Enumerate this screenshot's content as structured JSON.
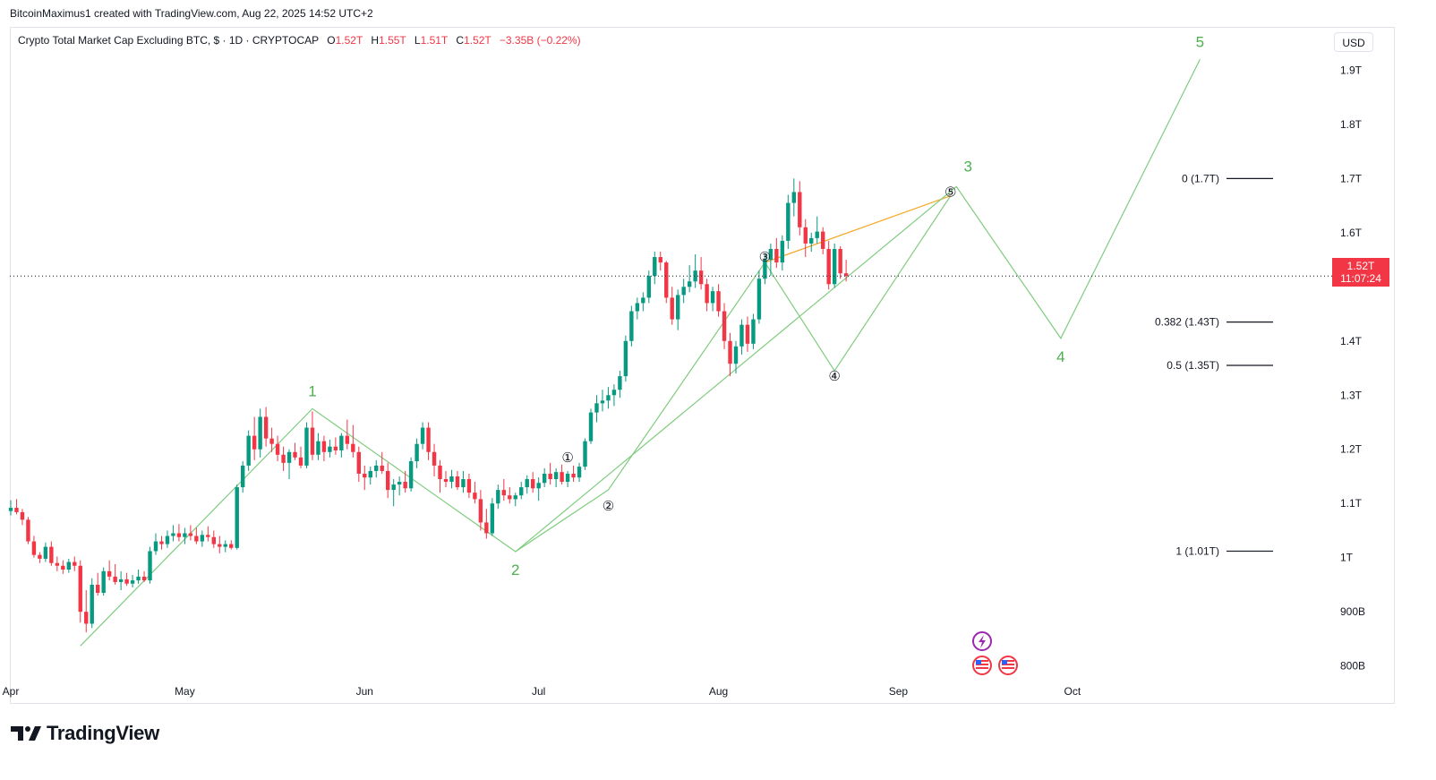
{
  "caption": "BitcoinMaximus1 created with TradingView.com, Aug 22, 2025 14:52 UTC+2",
  "legend": {
    "symbol": "Crypto Total Market Cap Excluding BTC, $ · 1D · CRYPTOCAP",
    "open_label": "O",
    "open": "1.52T",
    "high_label": "H",
    "high": "1.55T",
    "low_label": "L",
    "low": "1.51T",
    "close_label": "C",
    "close": "1.52T",
    "change": "−3.35B (−0.22%)"
  },
  "currency": "USD",
  "price_badge": {
    "price": "1.52T",
    "countdown": "11:07:24"
  },
  "brand": "TradingView",
  "colors": {
    "up": "#089981",
    "down": "#f23645",
    "wave": "#7fcc7f",
    "wave_label": "#4caf50",
    "sub_line": "#f5a623",
    "grid": "#e0e3eb"
  },
  "icons": {
    "lightning": "lightning-event-icon",
    "flag1": "us-flag-icon",
    "flag2": "us-flag-icon"
  },
  "chart_data": {
    "type": "candlestick",
    "y_unit": "T",
    "ylim": [
      0.73,
      1.98
    ],
    "y_ticks": [
      {
        "v": 1.9,
        "label": "1.9T"
      },
      {
        "v": 1.8,
        "label": "1.8T"
      },
      {
        "v": 1.7,
        "label": "1.7T"
      },
      {
        "v": 1.6,
        "label": "1.6T"
      },
      {
        "v": 1.4,
        "label": "1.4T"
      },
      {
        "v": 1.3,
        "label": "1.3T"
      },
      {
        "v": 1.2,
        "label": "1.2T"
      },
      {
        "v": 1.1,
        "label": "1.1T"
      },
      {
        "v": 1.0,
        "label": "1T"
      },
      {
        "v": 0.9,
        "label": "900B"
      },
      {
        "v": 0.8,
        "label": "800B"
      }
    ],
    "x_ticks": [
      {
        "day": 0,
        "label": "Apr"
      },
      {
        "day": 30,
        "label": "May"
      },
      {
        "day": 61,
        "label": "Jun"
      },
      {
        "day": 91,
        "label": "Jul"
      },
      {
        "day": 122,
        "label": "Aug"
      },
      {
        "day": 153,
        "label": "Sep"
      },
      {
        "day": 183,
        "label": "Oct"
      }
    ],
    "x_start": "2025-03-24",
    "candles": [
      [
        1.086,
        1.106,
        1.078,
        1.092
      ],
      [
        1.092,
        1.108,
        1.08,
        1.084
      ],
      [
        1.084,
        1.09,
        1.06,
        1.07
      ],
      [
        1.07,
        1.075,
        1.025,
        1.03
      ],
      [
        1.03,
        1.04,
        1.0,
        1.005
      ],
      [
        1.005,
        1.01,
        0.99,
        0.998
      ],
      [
        0.998,
        1.028,
        0.992,
        1.02
      ],
      [
        1.02,
        1.03,
        0.985,
        0.99
      ],
      [
        0.99,
        1.002,
        0.975,
        0.985
      ],
      [
        0.985,
        0.995,
        0.97,
        0.978
      ],
      [
        0.978,
        0.998,
        0.972,
        0.992
      ],
      [
        0.992,
        1.002,
        0.975,
        0.985
      ],
      [
        0.985,
        0.995,
        0.88,
        0.9
      ],
      [
        0.9,
        0.94,
        0.862,
        0.878
      ],
      [
        0.878,
        0.962,
        0.87,
        0.95
      ],
      [
        0.95,
        0.972,
        0.93,
        0.935
      ],
      [
        0.935,
        0.982,
        0.93,
        0.975
      ],
      [
        0.975,
        0.995,
        0.958,
        0.965
      ],
      [
        0.965,
        0.988,
        0.95,
        0.955
      ],
      [
        0.955,
        0.975,
        0.94,
        0.96
      ],
      [
        0.96,
        0.972,
        0.948,
        0.952
      ],
      [
        0.952,
        0.968,
        0.945,
        0.958
      ],
      [
        0.958,
        0.978,
        0.952,
        0.965
      ],
      [
        0.965,
        0.975,
        0.955,
        0.958
      ],
      [
        0.958,
        1.02,
        0.952,
        1.012
      ],
      [
        1.012,
        1.045,
        1.005,
        1.03
      ],
      [
        1.03,
        1.04,
        1.015,
        1.025
      ],
      [
        1.025,
        1.05,
        1.018,
        1.04
      ],
      [
        1.04,
        1.06,
        1.03,
        1.045
      ],
      [
        1.045,
        1.062,
        1.03,
        1.038
      ],
      [
        1.038,
        1.055,
        1.025,
        1.045
      ],
      [
        1.045,
        1.06,
        1.032,
        1.04
      ],
      [
        1.04,
        1.055,
        1.025,
        1.03
      ],
      [
        1.03,
        1.05,
        1.02,
        1.042
      ],
      [
        1.042,
        1.058,
        1.03,
        1.038
      ],
      [
        1.038,
        1.05,
        1.018,
        1.025
      ],
      [
        1.025,
        1.04,
        1.008,
        1.02
      ],
      [
        1.02,
        1.032,
        1.01,
        1.025
      ],
      [
        1.025,
        1.032,
        1.015,
        1.018
      ],
      [
        1.018,
        1.135,
        1.015,
        1.13
      ],
      [
        1.13,
        1.178,
        1.12,
        1.17
      ],
      [
        1.17,
        1.235,
        1.16,
        1.225
      ],
      [
        1.225,
        1.26,
        1.18,
        1.2
      ],
      [
        1.2,
        1.275,
        1.185,
        1.26
      ],
      [
        1.26,
        1.278,
        1.205,
        1.22
      ],
      [
        1.22,
        1.24,
        1.195,
        1.21
      ],
      [
        1.21,
        1.225,
        1.178,
        1.19
      ],
      [
        1.19,
        1.205,
        1.16,
        1.175
      ],
      [
        1.175,
        1.2,
        1.145,
        1.195
      ],
      [
        1.195,
        1.212,
        1.18,
        1.185
      ],
      [
        1.185,
        1.205,
        1.165,
        1.17
      ],
      [
        1.17,
        1.25,
        1.165,
        1.24
      ],
      [
        1.24,
        1.27,
        1.18,
        1.19
      ],
      [
        1.19,
        1.23,
        1.18,
        1.215
      ],
      [
        1.215,
        1.225,
        1.178,
        1.195
      ],
      [
        1.195,
        1.218,
        1.185,
        1.205
      ],
      [
        1.205,
        1.222,
        1.19,
        1.198
      ],
      [
        1.198,
        1.23,
        1.185,
        1.225
      ],
      [
        1.225,
        1.255,
        1.2,
        1.21
      ],
      [
        1.21,
        1.245,
        1.185,
        1.195
      ],
      [
        1.195,
        1.205,
        1.14,
        1.155
      ],
      [
        1.155,
        1.17,
        1.125,
        1.148
      ],
      [
        1.148,
        1.168,
        1.135,
        1.16
      ],
      [
        1.16,
        1.18,
        1.148,
        1.17
      ],
      [
        1.17,
        1.195,
        1.155,
        1.16
      ],
      [
        1.16,
        1.175,
        1.11,
        1.125
      ],
      [
        1.125,
        1.145,
        1.095,
        1.135
      ],
      [
        1.135,
        1.15,
        1.115,
        1.14
      ],
      [
        1.14,
        1.16,
        1.12,
        1.128
      ],
      [
        1.128,
        1.185,
        1.122,
        1.178
      ],
      [
        1.178,
        1.22,
        1.165,
        1.21
      ],
      [
        1.21,
        1.25,
        1.2,
        1.24
      ],
      [
        1.24,
        1.25,
        1.18,
        1.195
      ],
      [
        1.195,
        1.21,
        1.15,
        1.17
      ],
      [
        1.17,
        1.18,
        1.12,
        1.145
      ],
      [
        1.145,
        1.16,
        1.13,
        1.14
      ],
      [
        1.14,
        1.162,
        1.128,
        1.15
      ],
      [
        1.15,
        1.16,
        1.125,
        1.13
      ],
      [
        1.13,
        1.16,
        1.12,
        1.145
      ],
      [
        1.145,
        1.155,
        1.11,
        1.12
      ],
      [
        1.12,
        1.14,
        1.1,
        1.108
      ],
      [
        1.108,
        1.125,
        1.05,
        1.065
      ],
      [
        1.065,
        1.09,
        1.035,
        1.045
      ],
      [
        1.045,
        1.11,
        1.04,
        1.1
      ],
      [
        1.1,
        1.135,
        1.09,
        1.125
      ],
      [
        1.125,
        1.145,
        1.105,
        1.115
      ],
      [
        1.115,
        1.13,
        1.1,
        1.108
      ],
      [
        1.108,
        1.12,
        1.095,
        1.115
      ],
      [
        1.115,
        1.14,
        1.108,
        1.13
      ],
      [
        1.13,
        1.152,
        1.118,
        1.145
      ],
      [
        1.145,
        1.158,
        1.12,
        1.128
      ],
      [
        1.128,
        1.148,
        1.105,
        1.138
      ],
      [
        1.138,
        1.165,
        1.13,
        1.155
      ],
      [
        1.155,
        1.175,
        1.135,
        1.145
      ],
      [
        1.145,
        1.165,
        1.13,
        1.158
      ],
      [
        1.158,
        1.172,
        1.135,
        1.14
      ],
      [
        1.14,
        1.16,
        1.13,
        1.155
      ],
      [
        1.155,
        1.17,
        1.14,
        1.148
      ],
      [
        1.148,
        1.175,
        1.14,
        1.168
      ],
      [
        1.168,
        1.22,
        1.162,
        1.215
      ],
      [
        1.215,
        1.275,
        1.21,
        1.268
      ],
      [
        1.268,
        1.3,
        1.25,
        1.285
      ],
      [
        1.285,
        1.31,
        1.27,
        1.29
      ],
      [
        1.29,
        1.315,
        1.275,
        1.3
      ],
      [
        1.3,
        1.32,
        1.28,
        1.31
      ],
      [
        1.31,
        1.345,
        1.295,
        1.335
      ],
      [
        1.335,
        1.41,
        1.325,
        1.4
      ],
      [
        1.4,
        1.465,
        1.39,
        1.455
      ],
      [
        1.455,
        1.48,
        1.44,
        1.47
      ],
      [
        1.47,
        1.49,
        1.455,
        1.48
      ],
      [
        1.48,
        1.53,
        1.47,
        1.52
      ],
      [
        1.52,
        1.565,
        1.505,
        1.555
      ],
      [
        1.555,
        1.565,
        1.53,
        1.545
      ],
      [
        1.545,
        1.548,
        1.47,
        1.48
      ],
      [
        1.48,
        1.5,
        1.43,
        1.44
      ],
      [
        1.44,
        1.495,
        1.42,
        1.485
      ],
      [
        1.485,
        1.515,
        1.47,
        1.5
      ],
      [
        1.5,
        1.54,
        1.49,
        1.51
      ],
      [
        1.51,
        1.56,
        1.498,
        1.53
      ],
      [
        1.53,
        1.555,
        1.495,
        1.505
      ],
      [
        1.505,
        1.515,
        1.455,
        1.47
      ],
      [
        1.47,
        1.5,
        1.455,
        1.492
      ],
      [
        1.492,
        1.505,
        1.445,
        1.455
      ],
      [
        1.455,
        1.47,
        1.385,
        1.4
      ],
      [
        1.4,
        1.415,
        1.335,
        1.358
      ],
      [
        1.358,
        1.4,
        1.34,
        1.39
      ],
      [
        1.39,
        1.44,
        1.375,
        1.43
      ],
      [
        1.43,
        1.445,
        1.38,
        1.395
      ],
      [
        1.395,
        1.45,
        1.385,
        1.44
      ],
      [
        1.44,
        1.53,
        1.432,
        1.515
      ],
      [
        1.515,
        1.56,
        1.505,
        1.55
      ],
      [
        1.55,
        1.58,
        1.52,
        1.57
      ],
      [
        1.57,
        1.59,
        1.535,
        1.545
      ],
      [
        1.545,
        1.595,
        1.53,
        1.585
      ],
      [
        1.585,
        1.67,
        1.57,
        1.655
      ],
      [
        1.655,
        1.7,
        1.63,
        1.675
      ],
      [
        1.675,
        1.695,
        1.595,
        1.61
      ],
      [
        1.61,
        1.625,
        1.555,
        1.58
      ],
      [
        1.58,
        1.6,
        1.565,
        1.59
      ],
      [
        1.59,
        1.63,
        1.58,
        1.602
      ],
      [
        1.602,
        1.61,
        1.56,
        1.57
      ],
      [
        1.57,
        1.585,
        1.495,
        1.505
      ],
      [
        1.505,
        1.58,
        1.498,
        1.57
      ],
      [
        1.57,
        1.575,
        1.515,
        1.525
      ],
      [
        1.525,
        1.55,
        1.51,
        1.52
      ]
    ],
    "elliott_wave": {
      "points": [
        [
          12,
          0.837
        ],
        [
          52,
          1.275
        ],
        [
          87,
          1.011
        ],
        [
          163,
          1.685
        ],
        [
          181,
          1.405
        ],
        [
          205,
          1.92
        ]
      ],
      "labels": [
        {
          "text": "1",
          "day": 52,
          "v": 1.275,
          "pos": "above"
        },
        {
          "text": "2",
          "day": 87,
          "v": 1.011,
          "pos": "below"
        },
        {
          "text": "3",
          "day": 165,
          "v": 1.69,
          "pos": "above"
        },
        {
          "text": "4",
          "day": 181,
          "v": 1.405,
          "pos": "below"
        },
        {
          "text": "5",
          "day": 205,
          "v": 1.92,
          "pos": "above"
        }
      ]
    },
    "sub_waves": [
      {
        "text": "①",
        "day": 96,
        "v": 1.185
      },
      {
        "text": "②",
        "day": 103,
        "v": 1.095
      },
      {
        "text": "③",
        "day": 130,
        "v": 1.555
      },
      {
        "text": "④",
        "day": 142,
        "v": 1.335
      },
      {
        "text": "⑤",
        "day": 162,
        "v": 1.675
      }
    ],
    "sub_wave_lines": [
      [
        [
          87,
          1.011
        ],
        [
          103,
          1.125
        ],
        [
          130,
          1.545
        ],
        [
          142,
          1.345
        ],
        [
          162,
          1.668
        ]
      ]
    ],
    "sub_wave_lines_orange": [
      [
        [
          130,
          1.545
        ],
        [
          162,
          1.668
        ]
      ]
    ],
    "fib_levels": [
      {
        "label": "0 (1.7T)",
        "v": 1.7
      },
      {
        "label": "0.382 (1.43T)",
        "v": 1.435
      },
      {
        "label": "0.5 (1.35T)",
        "v": 1.355
      },
      {
        "label": "1 (1.01T)",
        "v": 1.012
      }
    ],
    "current_price": 1.52
  }
}
